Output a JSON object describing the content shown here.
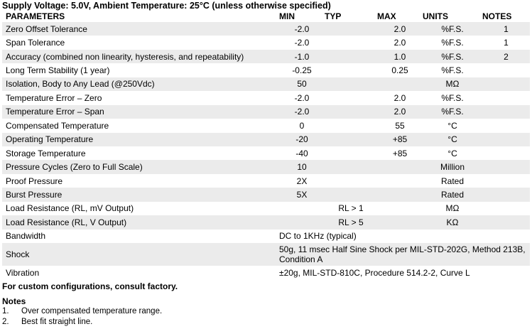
{
  "supply_line": "Supply Voltage: 5.0V, Ambient Temperature: 25°C (unless otherwise specified)",
  "headers": {
    "parameters": "PARAMETERS",
    "min": "MIN",
    "typ": "TYP",
    "max": "MAX",
    "units": "UNITS",
    "notes": "NOTES"
  },
  "rows": [
    {
      "param": "Zero Offset Tolerance",
      "min": "-2.0",
      "typ": "",
      "max": "2.0",
      "units": "%F.S.",
      "notes": "1"
    },
    {
      "param": "Span Tolerance",
      "min": "-2.0",
      "typ": "",
      "max": "2.0",
      "units": "%F.S.",
      "notes": "1"
    },
    {
      "param": "Accuracy (combined non linearity, hysteresis, and repeatability)",
      "min": "-1.0",
      "typ": "",
      "max": "1.0",
      "units": "%F.S.",
      "notes": "2"
    },
    {
      "param": "Long Term Stability (1 year)",
      "min": "-0.25",
      "typ": "",
      "max": "0.25",
      "units": "%F.S.",
      "notes": ""
    },
    {
      "param": "Isolation, Body to Any Lead (@250Vdc)",
      "min": "50",
      "typ": "",
      "max": "",
      "units": "MΩ",
      "notes": ""
    },
    {
      "param": "Temperature Error – Zero",
      "min": "-2.0",
      "typ": "",
      "max": "2.0",
      "units": "%F.S.",
      "notes": ""
    },
    {
      "param": "Temperature Error – Span",
      "min": "-2.0",
      "typ": "",
      "max": "2.0",
      "units": "%F.S.",
      "notes": ""
    },
    {
      "param": "Compensated Temperature",
      "min": "0",
      "typ": "",
      "max": "55",
      "units": "°C",
      "notes": ""
    },
    {
      "param": "Operating Temperature",
      "min": "-20",
      "typ": "",
      "max": "+85",
      "units": "°C",
      "notes": ""
    },
    {
      "param": "Storage Temperature",
      "min": "-40",
      "typ": "",
      "max": "+85",
      "units": "°C",
      "notes": ""
    },
    {
      "param": "Pressure Cycles (Zero to Full Scale)",
      "min": "10",
      "typ": "",
      "max": "",
      "units": "Million",
      "notes": ""
    },
    {
      "param": "Proof Pressure",
      "min": "2X",
      "typ": "",
      "max": "",
      "units": "Rated",
      "notes": ""
    },
    {
      "param": "Burst Pressure",
      "min": "5X",
      "typ": "",
      "max": "",
      "units": "Rated",
      "notes": ""
    },
    {
      "param": "Load Resistance (RL, mV Output)",
      "min": "",
      "typ": "RL > 1",
      "max": "",
      "units": "MΩ",
      "notes": ""
    },
    {
      "param": "Load Resistance (RL, V Output)",
      "min": "",
      "typ": "RL > 5",
      "max": "",
      "units": "KΩ",
      "notes": ""
    }
  ],
  "spanned_rows": [
    {
      "param": "Bandwidth",
      "value": "DC to 1KHz (typical)"
    },
    {
      "param": "Shock",
      "value": "50g, 11 msec Half Sine Shock per MIL-STD-202G, Method 213B, Condition A"
    },
    {
      "param": "Vibration",
      "value": "±20g, MIL-STD-810C, Procedure 514.2-2, Curve L"
    }
  ],
  "footer": "For custom configurations, consult factory.",
  "notes_title": "Notes",
  "notes": [
    {
      "num": "1.",
      "text": "Over compensated temperature range."
    },
    {
      "num": "2.",
      "text": "Best fit straight line."
    }
  ]
}
